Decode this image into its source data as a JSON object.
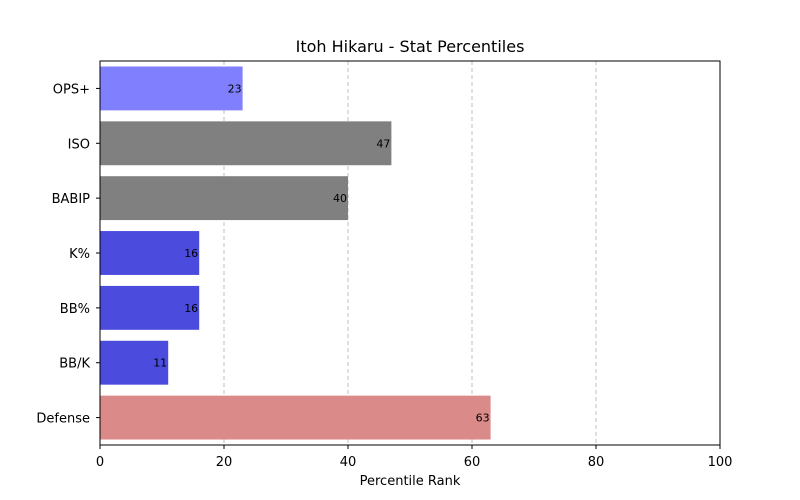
{
  "chart_data": {
    "type": "bar",
    "orientation": "horizontal",
    "title": "Itoh Hikaru - Stat Percentiles",
    "xlabel": "Percentile Rank",
    "ylabel": "",
    "xlim": [
      0,
      100
    ],
    "xticks": [
      "0",
      "20",
      "40",
      "60",
      "80",
      "100"
    ],
    "grid": "x-dashed",
    "categories": [
      "OPS+",
      "ISO",
      "BABIP",
      "K%",
      "BB%",
      "BB/K",
      "Defense"
    ],
    "values": [
      23,
      47,
      40,
      16,
      16,
      11,
      63
    ],
    "data_labels": [
      "23",
      "47",
      "40",
      "16",
      "16",
      "11",
      "63"
    ],
    "colors": [
      "#8080ff",
      "#808080",
      "#808080",
      "#4b4bdd",
      "#4b4bdd",
      "#4b4bdd",
      "#db8a8a"
    ]
  }
}
